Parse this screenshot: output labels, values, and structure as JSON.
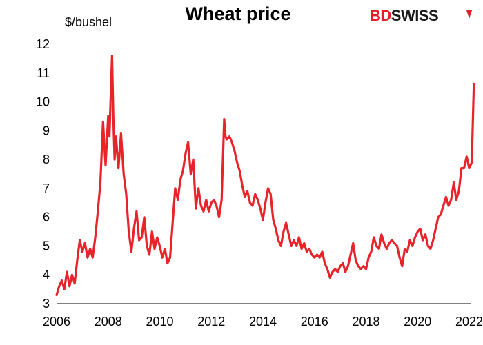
{
  "chart_data": {
    "type": "line",
    "title": "Wheat price",
    "ylabel": "$/bushel",
    "xlabel": "",
    "xlim": [
      2006,
      2022.3
    ],
    "ylim": [
      3,
      12
    ],
    "x_ticks": [
      "2006",
      "2008",
      "2010",
      "2012",
      "2014",
      "2016",
      "2018",
      "2020",
      "2022"
    ],
    "y_ticks": [
      "3",
      "4",
      "5",
      "6",
      "7",
      "8",
      "9",
      "10",
      "11",
      "12"
    ],
    "grid": false,
    "legend": "none",
    "series": [
      {
        "color": "#e8232a",
        "x": [
          2006.0,
          2006.1,
          2006.2,
          2006.3,
          2006.4,
          2006.5,
          2006.6,
          2006.7,
          2006.8,
          2006.9,
          2007.0,
          2007.1,
          2007.2,
          2007.3,
          2007.4,
          2007.5,
          2007.6,
          2007.7,
          2007.8,
          2007.9,
          2008.0,
          2008.05,
          2008.1,
          2008.15,
          2008.2,
          2008.25,
          2008.3,
          2008.4,
          2008.5,
          2008.6,
          2008.7,
          2008.8,
          2008.9,
          2009.0,
          2009.1,
          2009.2,
          2009.3,
          2009.4,
          2009.5,
          2009.6,
          2009.7,
          2009.8,
          2009.9,
          2010.0,
          2010.1,
          2010.2,
          2010.3,
          2010.4,
          2010.5,
          2010.6,
          2010.7,
          2010.8,
          2010.9,
          2011.0,
          2011.1,
          2011.2,
          2011.3,
          2011.4,
          2011.5,
          2011.6,
          2011.7,
          2011.8,
          2011.9,
          2012.0,
          2012.1,
          2012.2,
          2012.3,
          2012.4,
          2012.5,
          2012.55,
          2012.6,
          2012.7,
          2012.8,
          2012.9,
          2013.0,
          2013.1,
          2013.2,
          2013.3,
          2013.4,
          2013.5,
          2013.6,
          2013.7,
          2013.8,
          2013.9,
          2014.0,
          2014.1,
          2014.2,
          2014.3,
          2014.4,
          2014.5,
          2014.6,
          2014.7,
          2014.8,
          2014.9,
          2015.0,
          2015.1,
          2015.2,
          2015.3,
          2015.4,
          2015.5,
          2015.6,
          2015.7,
          2015.8,
          2015.9,
          2016.0,
          2016.1,
          2016.2,
          2016.3,
          2016.4,
          2016.5,
          2016.6,
          2016.7,
          2016.8,
          2016.9,
          2017.0,
          2017.1,
          2017.2,
          2017.3,
          2017.4,
          2017.5,
          2017.6,
          2017.7,
          2017.8,
          2017.9,
          2018.0,
          2018.1,
          2018.2,
          2018.3,
          2018.4,
          2018.5,
          2018.6,
          2018.7,
          2018.8,
          2018.9,
          2019.0,
          2019.1,
          2019.2,
          2019.3,
          2019.4,
          2019.5,
          2019.6,
          2019.7,
          2019.8,
          2019.9,
          2020.0,
          2020.1,
          2020.2,
          2020.3,
          2020.4,
          2020.5,
          2020.6,
          2020.7,
          2020.8,
          2020.9,
          2021.0,
          2021.1,
          2021.2,
          2021.3,
          2021.4,
          2021.5,
          2021.6,
          2021.7,
          2021.8,
          2021.9,
          2022.0,
          2022.1,
          2022.15,
          2022.18
        ],
        "values": [
          3.3,
          3.6,
          3.8,
          3.5,
          4.1,
          3.6,
          4.0,
          3.7,
          4.5,
          5.2,
          4.8,
          5.1,
          4.6,
          4.9,
          4.6,
          5.3,
          6.2,
          7.2,
          9.3,
          7.8,
          9.5,
          8.8,
          10.2,
          11.6,
          9.5,
          8.0,
          8.8,
          7.7,
          8.9,
          7.5,
          6.8,
          5.5,
          4.8,
          5.6,
          6.2,
          5.2,
          5.3,
          6.0,
          5.0,
          4.7,
          5.5,
          4.9,
          5.3,
          5.0,
          4.6,
          4.9,
          4.4,
          4.6,
          5.8,
          7.0,
          6.6,
          7.3,
          7.6,
          8.2,
          8.6,
          7.5,
          8.0,
          6.3,
          7.0,
          6.4,
          6.2,
          6.6,
          6.2,
          6.5,
          6.6,
          6.4,
          6.0,
          6.6,
          9.4,
          8.8,
          8.7,
          8.8,
          8.6,
          8.3,
          7.9,
          7.6,
          7.1,
          6.7,
          6.9,
          6.5,
          6.4,
          6.8,
          6.6,
          6.3,
          5.9,
          6.5,
          7.0,
          6.8,
          5.9,
          5.6,
          5.2,
          5.0,
          5.5,
          5.8,
          5.4,
          5.0,
          5.2,
          5.0,
          5.3,
          4.9,
          5.1,
          4.8,
          4.9,
          4.7,
          4.6,
          4.7,
          4.6,
          4.8,
          4.4,
          4.2,
          3.9,
          4.1,
          4.2,
          4.1,
          4.3,
          4.4,
          4.1,
          4.3,
          4.7,
          5.1,
          4.5,
          4.3,
          4.2,
          4.3,
          4.2,
          4.6,
          4.8,
          5.3,
          5.0,
          4.9,
          5.4,
          5.1,
          4.9,
          5.1,
          5.2,
          5.1,
          5.0,
          4.6,
          4.3,
          4.9,
          4.8,
          5.2,
          5.0,
          5.3,
          5.5,
          5.6,
          5.2,
          5.4,
          5.0,
          4.9,
          5.2,
          5.6,
          6.0,
          6.1,
          6.4,
          6.7,
          6.4,
          6.6,
          7.2,
          6.6,
          6.9,
          7.7,
          7.7,
          8.1,
          7.7,
          7.9,
          9.6,
          10.6
        ]
      }
    ]
  },
  "logo": {
    "part1": "BD",
    "part2": "SWISS",
    "mark_color": "#e31e24"
  }
}
